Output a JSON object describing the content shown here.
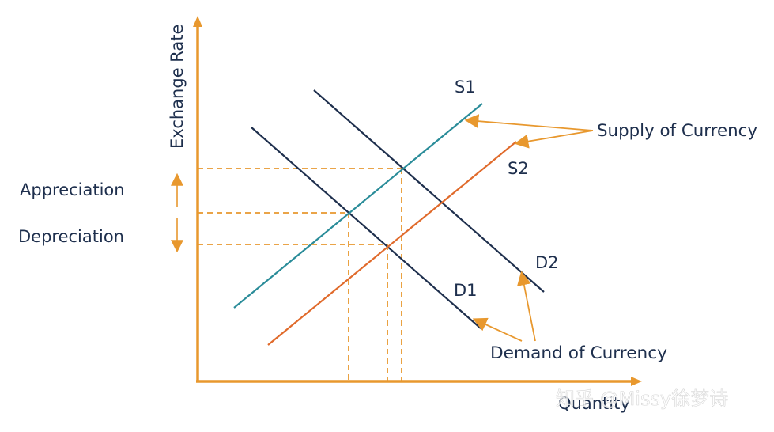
{
  "axes": {
    "y_label": "Exchange Rate",
    "x_label": "Quantity"
  },
  "curves": {
    "s1": "S1",
    "s2": "S2",
    "d1": "D1",
    "d2": "D2"
  },
  "annotations": {
    "supply": "Supply of Currency",
    "demand": "Demand of Currency",
    "appreciation": "Appreciation",
    "depreciation": "Depreciation"
  },
  "watermark": "知乎 @Missy徐梦诗",
  "colors": {
    "axis": "#e8982e",
    "s1": "#2a8c99",
    "s2": "#e06a2b",
    "demand": "#1e2f4d",
    "text": "#1e2f4d"
  }
}
